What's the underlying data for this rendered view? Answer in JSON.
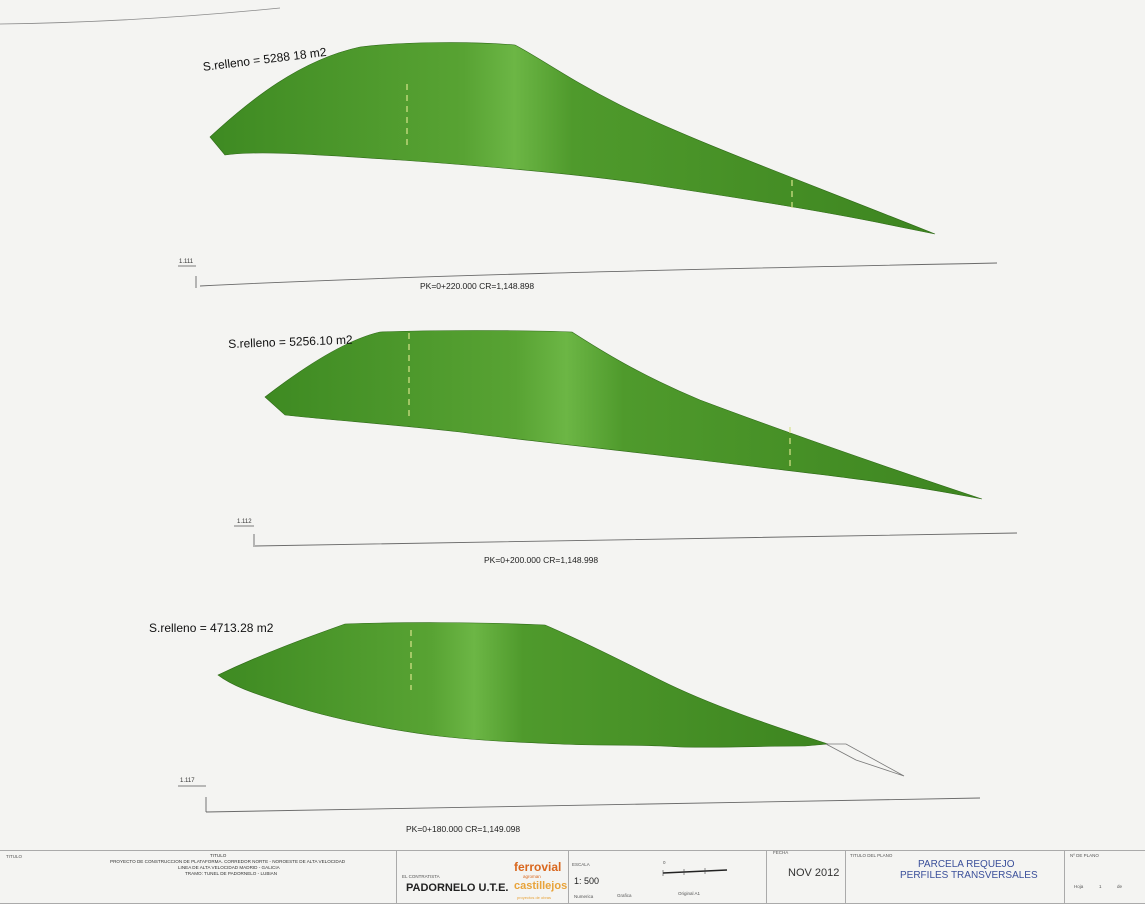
{
  "sections": [
    {
      "area_label": "S.relleno = 5288 18 m2",
      "pk_label": "PK=0+220.000   CR=1,148.898",
      "elev_label": "1.111"
    },
    {
      "area_label": "S.relleno = 5256.10 m2",
      "pk_label": "PK=0+200.000   CR=1,148.998",
      "elev_label": "1.112"
    },
    {
      "area_label": "S.relleno = 4713.28 m2",
      "pk_label": "PK=0+180.000   CR=1,149.098",
      "elev_label": "1.117"
    }
  ],
  "title_block": {
    "titulo_label": "TITULO",
    "titulo_sub": "TITULO",
    "project_line1": "PROYECTO DE CONSTRUCCION DE PLATAFORMA. CORREDOR NORTE - NOROESTE DE ALTA VELOCIDAD",
    "project_line2": "LINEA DE ALTA VELOCIDAD MADRID - GALICIA",
    "project_line3": "TRAMO: TUNEL DE PADORNELO - LUBIAN",
    "contratista_label": "EL CONTRATISTA",
    "contratista": "PADORNELO U.T.E.",
    "logo_line1": "ferrovial",
    "logo_line2": "agroman",
    "logo_line3": "castillejos",
    "logo_line4": "proyectos de obras",
    "escala_label": "ESCALA",
    "escala": "1: 500",
    "numerica_label": "Numerica",
    "grafica_label": "Grafica",
    "scale_zero": "0",
    "original_label": "Original A1",
    "fecha_label": "FECHA",
    "fecha": "NOV 2012",
    "titulo_plano_label": "TITULO DEL PLANO",
    "plano_line1": "PARCELA REQUEJO",
    "plano_line2": "PERFILES TRANSVERSALES",
    "nplano_label": "Nº DE PLANO",
    "hoja_label": "Hoja",
    "de_label": "de",
    "hoja_num": "1"
  },
  "colors": {
    "fill_main": "#4f9a2c",
    "fill_dark": "#3f8421",
    "fill_light": "#6fb844",
    "ground_line": "#6a6a6a",
    "brand_red": "#d9671e",
    "brand_orange": "#e8a33a",
    "plano_blue": "#3a4f9a"
  }
}
